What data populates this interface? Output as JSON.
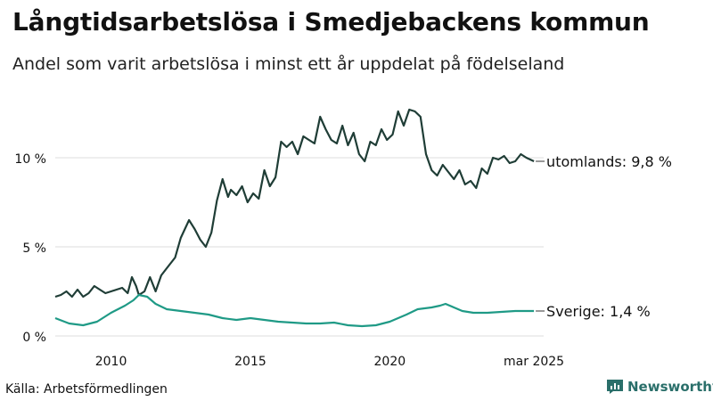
{
  "title": "Långtidsarbetslösa i Smedjebackens kommun",
  "subtitle": "Andel som varit arbetslösa i minst ett år uppdelat på födelseland",
  "source": "Källa: Arbetsförmedlingen",
  "brand": "Newsworthy",
  "colors": {
    "utomlands": "#1f3d36",
    "sverige": "#1f9a86",
    "grid": "#dddddd",
    "brand": "#2a6f6a"
  },
  "chart_data": {
    "type": "line",
    "title": "Långtidsarbetslösa i Smedjebackens kommun",
    "ylim": [
      0,
      13.5
    ],
    "yticks": [
      {
        "value": 0,
        "label": "0 %"
      },
      {
        "value": 5,
        "label": "5 %"
      },
      {
        "value": 10,
        "label": "10 %"
      }
    ],
    "xlim": [
      2008.0,
      2025.2
    ],
    "xticks": [
      {
        "value": 2010,
        "label": "2010"
      },
      {
        "value": 2015,
        "label": "2015"
      },
      {
        "value": 2020,
        "label": "2020"
      },
      {
        "value": 2025.17,
        "label": "mar 2025"
      }
    ],
    "grid": true,
    "series": [
      {
        "name": "utomlands",
        "end_label": "utomlands: 9,8 %",
        "x": [
          2008.0,
          2008.2,
          2008.4,
          2008.6,
          2008.8,
          2009.0,
          2009.2,
          2009.4,
          2009.6,
          2009.8,
          2010.0,
          2010.2,
          2010.4,
          2010.6,
          2010.75,
          2010.9,
          2011.0,
          2011.2,
          2011.4,
          2011.6,
          2011.8,
          2012.0,
          2012.3,
          2012.5,
          2012.8,
          2013.0,
          2013.2,
          2013.4,
          2013.6,
          2013.8,
          2014.0,
          2014.2,
          2014.3,
          2014.5,
          2014.7,
          2014.9,
          2015.1,
          2015.3,
          2015.5,
          2015.7,
          2015.9,
          2016.1,
          2016.3,
          2016.5,
          2016.7,
          2016.9,
          2017.1,
          2017.3,
          2017.5,
          2017.7,
          2017.9,
          2018.1,
          2018.3,
          2018.5,
          2018.7,
          2018.9,
          2019.1,
          2019.3,
          2019.5,
          2019.7,
          2019.9,
          2020.1,
          2020.3,
          2020.5,
          2020.7,
          2020.9,
          2021.1,
          2021.3,
          2021.5,
          2021.7,
          2021.9,
          2022.1,
          2022.3,
          2022.5,
          2022.7,
          2022.9,
          2023.1,
          2023.3,
          2023.5,
          2023.7,
          2023.9,
          2024.1,
          2024.3,
          2024.5,
          2024.7,
          2024.9,
          2025.17
        ],
        "y": [
          2.2,
          2.3,
          2.5,
          2.2,
          2.6,
          2.2,
          2.4,
          2.8,
          2.6,
          2.4,
          2.5,
          2.6,
          2.7,
          2.4,
          3.3,
          2.8,
          2.3,
          2.5,
          3.3,
          2.5,
          3.4,
          3.8,
          4.4,
          5.5,
          6.5,
          6.0,
          5.4,
          5.0,
          5.8,
          7.6,
          8.8,
          7.8,
          8.2,
          7.9,
          8.4,
          7.5,
          8.0,
          7.7,
          9.3,
          8.4,
          8.9,
          10.9,
          10.6,
          10.9,
          10.2,
          11.2,
          11.0,
          10.8,
          12.3,
          11.6,
          11.0,
          10.8,
          11.8,
          10.7,
          11.4,
          10.2,
          9.8,
          10.9,
          10.7,
          11.6,
          11.0,
          11.3,
          12.6,
          11.8,
          12.7,
          12.6,
          12.3,
          10.2,
          9.3,
          9.0,
          9.6,
          9.2,
          8.8,
          9.3,
          8.5,
          8.7,
          8.3,
          9.4,
          9.1,
          10.0,
          9.9,
          10.1,
          9.7,
          9.8,
          10.2,
          10.0,
          9.8
        ]
      },
      {
        "name": "Sverige",
        "end_label": "Sverige: 1,4 %",
        "x": [
          2008.0,
          2008.5,
          2009.0,
          2009.5,
          2010.0,
          2010.5,
          2010.8,
          2011.0,
          2011.3,
          2011.6,
          2012.0,
          2012.5,
          2013.0,
          2013.5,
          2014.0,
          2014.5,
          2015.0,
          2015.5,
          2016.0,
          2016.5,
          2017.0,
          2017.5,
          2018.0,
          2018.5,
          2019.0,
          2019.5,
          2020.0,
          2020.3,
          2020.6,
          2021.0,
          2021.5,
          2021.8,
          2022.0,
          2022.3,
          2022.6,
          2023.0,
          2023.5,
          2024.0,
          2024.5,
          2025.17
        ],
        "y": [
          1.0,
          0.7,
          0.6,
          0.8,
          1.3,
          1.7,
          2.0,
          2.3,
          2.2,
          1.8,
          1.5,
          1.4,
          1.3,
          1.2,
          1.0,
          0.9,
          1.0,
          0.9,
          0.8,
          0.75,
          0.7,
          0.7,
          0.75,
          0.6,
          0.55,
          0.6,
          0.8,
          1.0,
          1.2,
          1.5,
          1.6,
          1.7,
          1.8,
          1.6,
          1.4,
          1.3,
          1.3,
          1.35,
          1.4,
          1.4
        ]
      }
    ]
  }
}
